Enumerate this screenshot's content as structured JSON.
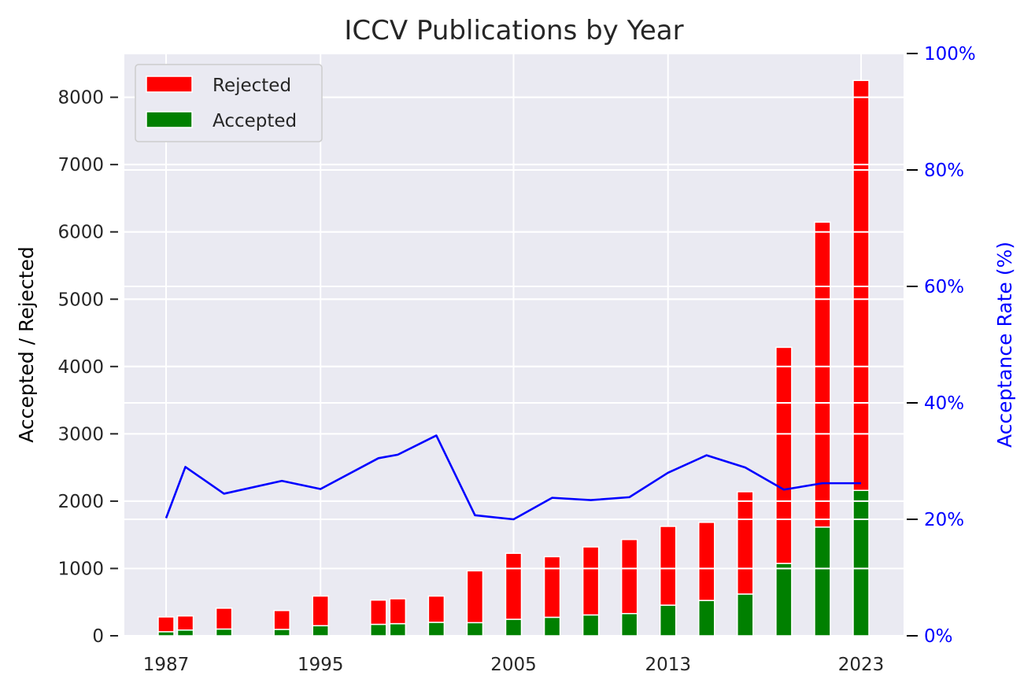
{
  "chart_data": {
    "type": "bar",
    "title": "ICCV Publications by Year",
    "ylabel": "Accepted / Rejected",
    "y2label": "Acceptance Rate (%)",
    "ylim": [
      0,
      8650
    ],
    "y2lim": [
      0,
      100
    ],
    "xlim": [
      1983.8,
      1987.0
    ],
    "x_ticks": [
      1987,
      1995,
      2005,
      2013,
      2023
    ],
    "y_ticks": [
      0,
      1000,
      2000,
      3000,
      4000,
      5000,
      6000,
      7000,
      8000
    ],
    "y2_ticks": [
      "0%",
      "20%",
      "40%",
      "60%",
      "80%",
      "100%"
    ],
    "years": [
      1987,
      1988,
      1990,
      1993,
      1995,
      1998,
      1999,
      2001,
      2003,
      2005,
      2007,
      2009,
      2011,
      2013,
      2015,
      2017,
      2019,
      2021,
      2023
    ],
    "series": [
      {
        "name": "Rejected",
        "color": "#ff0000",
        "values": [
          220,
          210,
          310,
          280,
          440,
          360,
          370,
          390,
          770,
          980,
          900,
          1010,
          1100,
          1170,
          1160,
          1520,
          3210,
          4530,
          6090
        ]
      },
      {
        "name": "Accepted",
        "color": "#008000",
        "values": [
          60,
          85,
          100,
          95,
          150,
          170,
          180,
          200,
          195,
          245,
          275,
          310,
          330,
          455,
          525,
          620,
          1075,
          1615,
          2160
        ]
      }
    ],
    "acceptance_rate": {
      "name": "Acceptance Rate",
      "color": "#0000ff",
      "values": [
        20.2,
        29.0,
        24.4,
        26.6,
        25.2,
        30.5,
        31.1,
        34.4,
        20.7,
        20.0,
        23.7,
        23.3,
        23.8,
        28.0,
        31.0,
        28.9,
        25.1,
        26.2,
        26.2
      ]
    },
    "grid": true,
    "legend_position": "top-left",
    "background": "#eaeaf2",
    "axis_color_right": "#0000ff"
  }
}
